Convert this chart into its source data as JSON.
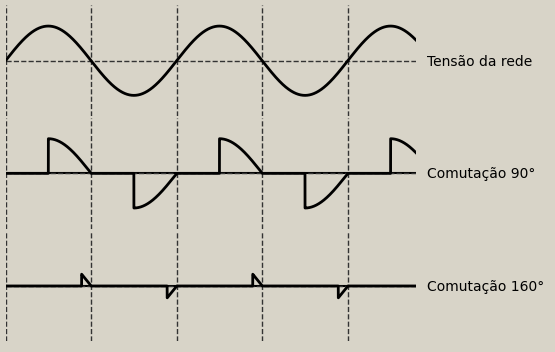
{
  "labels": [
    "Tensão da rede",
    "Comutação 90°",
    "Comutação 160°"
  ],
  "bg_color": "#d8d4c8",
  "line_color": "#000000",
  "dashed_color": "#333333",
  "amplitude": 1.0,
  "fire_90": 90,
  "fire_160": 160,
  "label_fontsize": 10,
  "num_points": 8000,
  "xlim_cycles": 2.4
}
